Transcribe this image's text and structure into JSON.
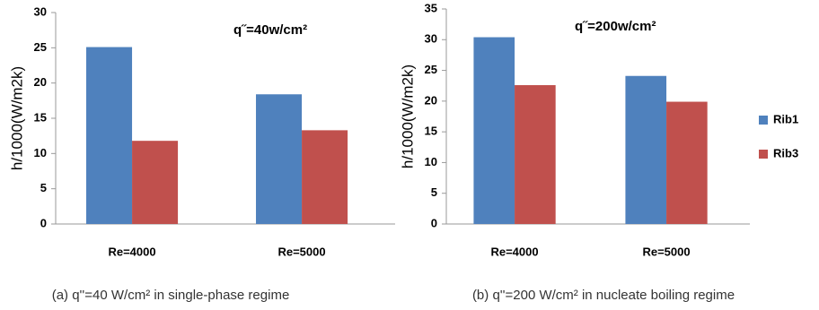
{
  "chart_data": [
    {
      "type": "bar",
      "ylabel": "h/1000(W/m2k)",
      "annotation": "q˝=40w/cm²",
      "caption": "(a) q''=40 W/cm² in single-phase regime",
      "categories": [
        "Re=4000",
        "Re=5000"
      ],
      "series": [
        {
          "color": "#4f81bd",
          "values": [
            25.1,
            18.4
          ]
        },
        {
          "color": "#c0504d",
          "values": [
            11.8,
            13.3
          ]
        }
      ],
      "ylim": [
        0,
        30
      ],
      "yticks": [
        0,
        5,
        10,
        15,
        20,
        25,
        30
      ],
      "grid": false
    },
    {
      "type": "bar",
      "ylabel": "h/1000(W/m2k)",
      "annotation": "q˝=200w/cm²",
      "caption": "(b) q''=200 W/cm² in nucleate boiling regime",
      "categories": [
        "Re=4000",
        "Re=5000"
      ],
      "series": [
        {
          "name": "Rib1",
          "color": "#4f81bd",
          "values": [
            30.4,
            24.1
          ]
        },
        {
          "name": "Rib3",
          "color": "#c0504d",
          "values": [
            22.6,
            19.9
          ]
        }
      ],
      "ylim": [
        0,
        35
      ],
      "yticks": [
        0,
        5,
        10,
        15,
        20,
        25,
        30,
        35
      ],
      "grid": false,
      "legend": "right"
    }
  ]
}
